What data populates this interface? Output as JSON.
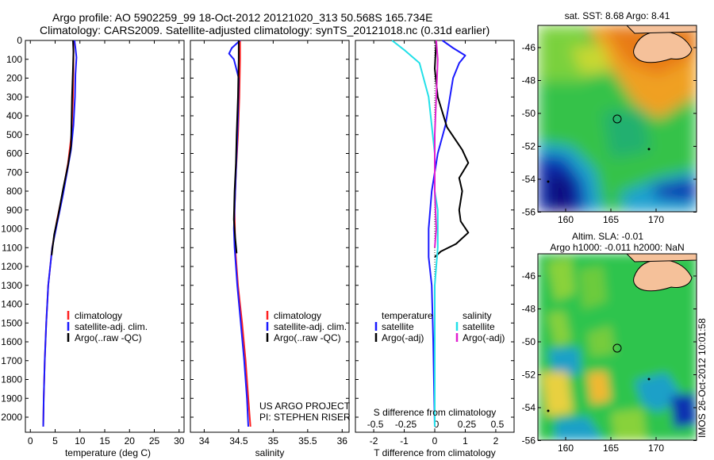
{
  "header": {
    "line1": "Argo profile: AO 5902259_99 18-Oct-2012 20121020_313 50.568S 165.734E",
    "line2": "Climatology: CARS2009. Satellite-adjusted climatology: synTS_20121018.nc (0.31d earlier)"
  },
  "stamp": "IMOS 26-Oct-2012 10:01:58",
  "colors": {
    "climatology": "#ff2020",
    "satellite": "#1a1aff",
    "argo": "#000000",
    "sal_satellite": "#22e0e8",
    "sal_argo": "#e020d0"
  },
  "chart_data": [
    {
      "type": "line",
      "id": "temperature",
      "xlabel": "temperature (deg C)",
      "ylabel": "",
      "xlim": [
        -1,
        31
      ],
      "ylim": [
        2080,
        0
      ],
      "xticks": [
        0,
        5,
        10,
        15,
        20,
        25,
        30
      ],
      "yticks": [
        0,
        100,
        200,
        300,
        400,
        500,
        600,
        700,
        800,
        900,
        1000,
        1100,
        1200,
        1300,
        1400,
        1500,
        1600,
        1700,
        1800,
        1900,
        2000
      ],
      "legend": [
        "climatology",
        "satellite-adj. clim.",
        "Argo(..raw -QC)"
      ],
      "series": [
        {
          "name": "climatology",
          "color": "#ff2020",
          "points": [
            [
              8.7,
              0
            ],
            [
              8.7,
              100
            ],
            [
              8.6,
              300
            ],
            [
              8.3,
              500
            ],
            [
              7.6,
              650
            ],
            [
              6.6,
              800
            ],
            [
              5.4,
              950
            ],
            [
              4.4,
              1100
            ],
            [
              3.6,
              1300
            ],
            [
              3.2,
              1500
            ],
            [
              2.9,
              1700
            ],
            [
              2.7,
              1900
            ],
            [
              2.6,
              2050
            ]
          ]
        },
        {
          "name": "satellite-adj. clim.",
          "color": "#1a1aff",
          "points": [
            [
              8.9,
              0
            ],
            [
              9.1,
              40
            ],
            [
              9.3,
              90
            ],
            [
              9.1,
              180
            ],
            [
              9.0,
              300
            ],
            [
              8.7,
              450
            ],
            [
              8.2,
              580
            ],
            [
              7.4,
              700
            ],
            [
              6.5,
              830
            ],
            [
              5.4,
              970
            ],
            [
              4.4,
              1100
            ],
            [
              3.6,
              1300
            ],
            [
              3.2,
              1500
            ],
            [
              2.9,
              1700
            ],
            [
              2.7,
              1900
            ],
            [
              2.6,
              2050
            ]
          ]
        },
        {
          "name": "Argo(..raw -QC)",
          "color": "#000000",
          "points": [
            [
              8.6,
              0
            ],
            [
              8.7,
              60
            ],
            [
              8.6,
              150
            ],
            [
              8.4,
              300
            ],
            [
              8.3,
              450
            ],
            [
              8.2,
              560
            ],
            [
              7.6,
              660
            ],
            [
              6.6,
              790
            ],
            [
              5.6,
              930
            ],
            [
              4.8,
              1030
            ],
            [
              4.3,
              1140
            ]
          ]
        }
      ]
    },
    {
      "type": "line",
      "id": "salinity",
      "xlabel": "salinity",
      "ylabel": "",
      "xlim": [
        33.8,
        36.1
      ],
      "ylim": [
        2080,
        0
      ],
      "xticks": [
        34,
        34.5,
        35,
        35.5,
        36
      ],
      "legend": [
        "climatology",
        "satellite-adj. clim.",
        "Argo(..raw -QC)"
      ],
      "annotation": [
        "US ARGO PROJECT",
        "PI: STEPHEN RISER"
      ],
      "series": [
        {
          "name": "climatology",
          "color": "#ff2020",
          "points": [
            [
              34.52,
              0
            ],
            [
              34.52,
              100
            ],
            [
              34.51,
              300
            ],
            [
              34.49,
              500
            ],
            [
              34.46,
              700
            ],
            [
              34.44,
              900
            ],
            [
              34.45,
              1100
            ],
            [
              34.49,
              1300
            ],
            [
              34.55,
              1500
            ],
            [
              34.6,
              1700
            ],
            [
              34.64,
              1900
            ],
            [
              34.67,
              2050
            ]
          ]
        },
        {
          "name": "satellite-adj. clim.",
          "color": "#1a1aff",
          "points": [
            [
              34.52,
              0
            ],
            [
              34.4,
              40
            ],
            [
              34.36,
              70
            ],
            [
              34.43,
              100
            ],
            [
              34.5,
              200
            ],
            [
              34.49,
              400
            ],
            [
              34.47,
              600
            ],
            [
              34.45,
              800
            ],
            [
              34.43,
              1000
            ],
            [
              34.44,
              1100
            ],
            [
              34.48,
              1300
            ],
            [
              34.53,
              1500
            ],
            [
              34.58,
              1700
            ],
            [
              34.62,
              1900
            ],
            [
              34.64,
              2050
            ]
          ]
        },
        {
          "name": "Argo(..raw -QC)",
          "color": "#000000",
          "points": [
            [
              34.5,
              0
            ],
            [
              34.5,
              100
            ],
            [
              34.49,
              300
            ],
            [
              34.47,
              500
            ],
            [
              34.46,
              650
            ],
            [
              34.44,
              800
            ],
            [
              34.43,
              950
            ],
            [
              34.45,
              1050
            ],
            [
              34.47,
              1130
            ]
          ]
        }
      ]
    },
    {
      "type": "line",
      "id": "difference",
      "xlabel": "T difference from climatology",
      "xlabel_top": "S difference from climatology",
      "xlim": [
        -2.6,
        2.6
      ],
      "ylim": [
        2080,
        0
      ],
      "xticks": [
        -2,
        -1,
        0,
        1,
        2
      ],
      "xticks_s": [
        "-0.5",
        "-0.25",
        "0",
        "0.25",
        "0.5"
      ],
      "legend": {
        "col1": "temperature",
        "col2": "salinity",
        "entries": [
          "satellite",
          "Argo(-adj)",
          "satellite",
          "Argo(-adj)"
        ]
      },
      "series": [
        {
          "name": "satellite",
          "group": "temperature",
          "color": "#1a1aff",
          "points": [
            [
              0.25,
              0
            ],
            [
              0.6,
              40
            ],
            [
              1.0,
              80
            ],
            [
              0.8,
              120
            ],
            [
              0.6,
              200
            ],
            [
              0.5,
              300
            ],
            [
              0.35,
              450
            ],
            [
              0.1,
              600
            ],
            [
              -0.1,
              800
            ],
            [
              -0.2,
              1000
            ],
            [
              -0.2,
              1150
            ],
            [
              -0.1,
              1300
            ],
            [
              -0.05,
              1600
            ],
            [
              0,
              2050
            ]
          ]
        },
        {
          "name": "Argo(-adj)",
          "group": "temperature",
          "color": "#000000",
          "points": [
            [
              0.05,
              0
            ],
            [
              0,
              150
            ],
            [
              0.1,
              300
            ],
            [
              0.4,
              460
            ],
            [
              0.9,
              580
            ],
            [
              1.1,
              650
            ],
            [
              0.8,
              730
            ],
            [
              0.9,
              800
            ],
            [
              0.8,
              900
            ],
            [
              0.85,
              960
            ],
            [
              1.1,
              1020
            ],
            [
              0.7,
              1080
            ],
            [
              0.2,
              1120
            ],
            [
              0,
              1150
            ]
          ]
        },
        {
          "name": "satellite",
          "group": "salinity",
          "color": "#22e0e8",
          "points": [
            [
              -1.4,
              0
            ],
            [
              -1.0,
              50
            ],
            [
              -0.5,
              120
            ],
            [
              -0.2,
              300
            ],
            [
              0,
              600
            ],
            [
              0,
              800
            ],
            [
              0.1,
              900
            ],
            [
              0.1,
              1100
            ],
            [
              0,
              1300
            ],
            [
              0,
              1600
            ],
            [
              0,
              2050
            ]
          ]
        },
        {
          "name": "Argo(-adj)",
          "group": "salinity",
          "color": "#e020d0",
          "points": [
            [
              0.05,
              0
            ],
            [
              0.1,
              100
            ],
            [
              0.05,
              300
            ],
            [
              0,
              500
            ],
            [
              0,
              800
            ],
            [
              0.05,
              1000
            ],
            [
              0,
              1100
            ]
          ]
        }
      ]
    }
  ],
  "maps": {
    "sst": {
      "title": "sat. SST: 8.68 Argo: 8.41",
      "yticks": [
        "-46",
        "-48",
        "-50",
        "-52",
        "-54",
        "-56"
      ],
      "xticks": [
        "160",
        "165",
        "170"
      ]
    },
    "sla": {
      "title_line1": "Altim. SLA: -0.01",
      "title_line2": "Argo h1000: -0.011 h2000: NaN",
      "yticks": [
        "-46",
        "-48",
        "-50",
        "-52",
        "-54",
        "-56"
      ],
      "xticks": [
        "160",
        "165",
        "170"
      ]
    }
  }
}
